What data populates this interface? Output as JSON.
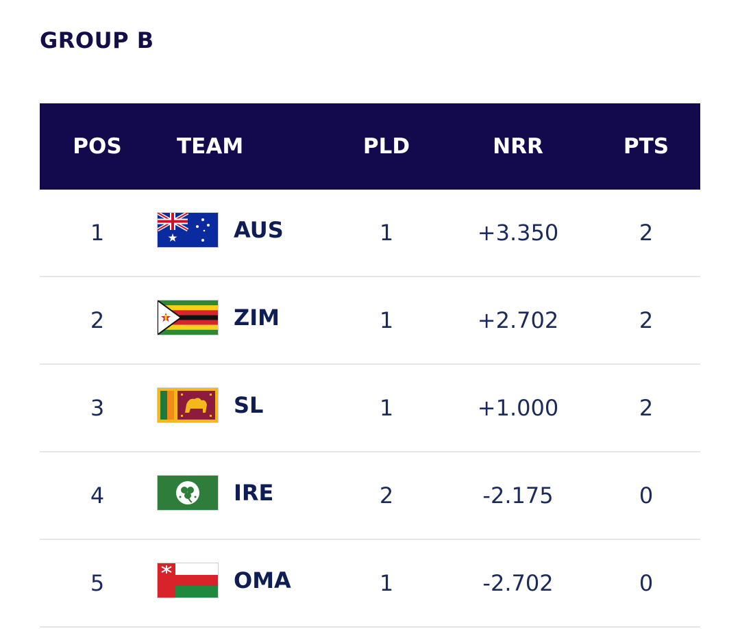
{
  "group_title": "GROUP B",
  "headers": {
    "pos": "POS",
    "team": "TEAM",
    "pld": "PLD",
    "nrr": "NRR",
    "pts": "PTS"
  },
  "rows": [
    {
      "pos": "1",
      "team": "AUS",
      "flag": "australia-flag-icon",
      "pld": "1",
      "nrr": "+3.350",
      "pts": "2"
    },
    {
      "pos": "2",
      "team": "ZIM",
      "flag": "zimbabwe-flag-icon",
      "pld": "1",
      "nrr": "+2.702",
      "pts": "2"
    },
    {
      "pos": "3",
      "team": "SL",
      "flag": "sri-lanka-flag-icon",
      "pld": "1",
      "nrr": "+1.000",
      "pts": "2"
    },
    {
      "pos": "4",
      "team": "IRE",
      "flag": "ireland-cricket-flag-icon",
      "pld": "2",
      "nrr": "-2.175",
      "pts": "0"
    },
    {
      "pos": "5",
      "team": "OMA",
      "flag": "oman-flag-icon",
      "pld": "1",
      "nrr": "-2.702",
      "pts": "0"
    }
  ],
  "colors": {
    "header_bg": "#120a4c",
    "title": "#130d4a",
    "text": "#1b2a5c",
    "divider": "#e5e5e5"
  }
}
